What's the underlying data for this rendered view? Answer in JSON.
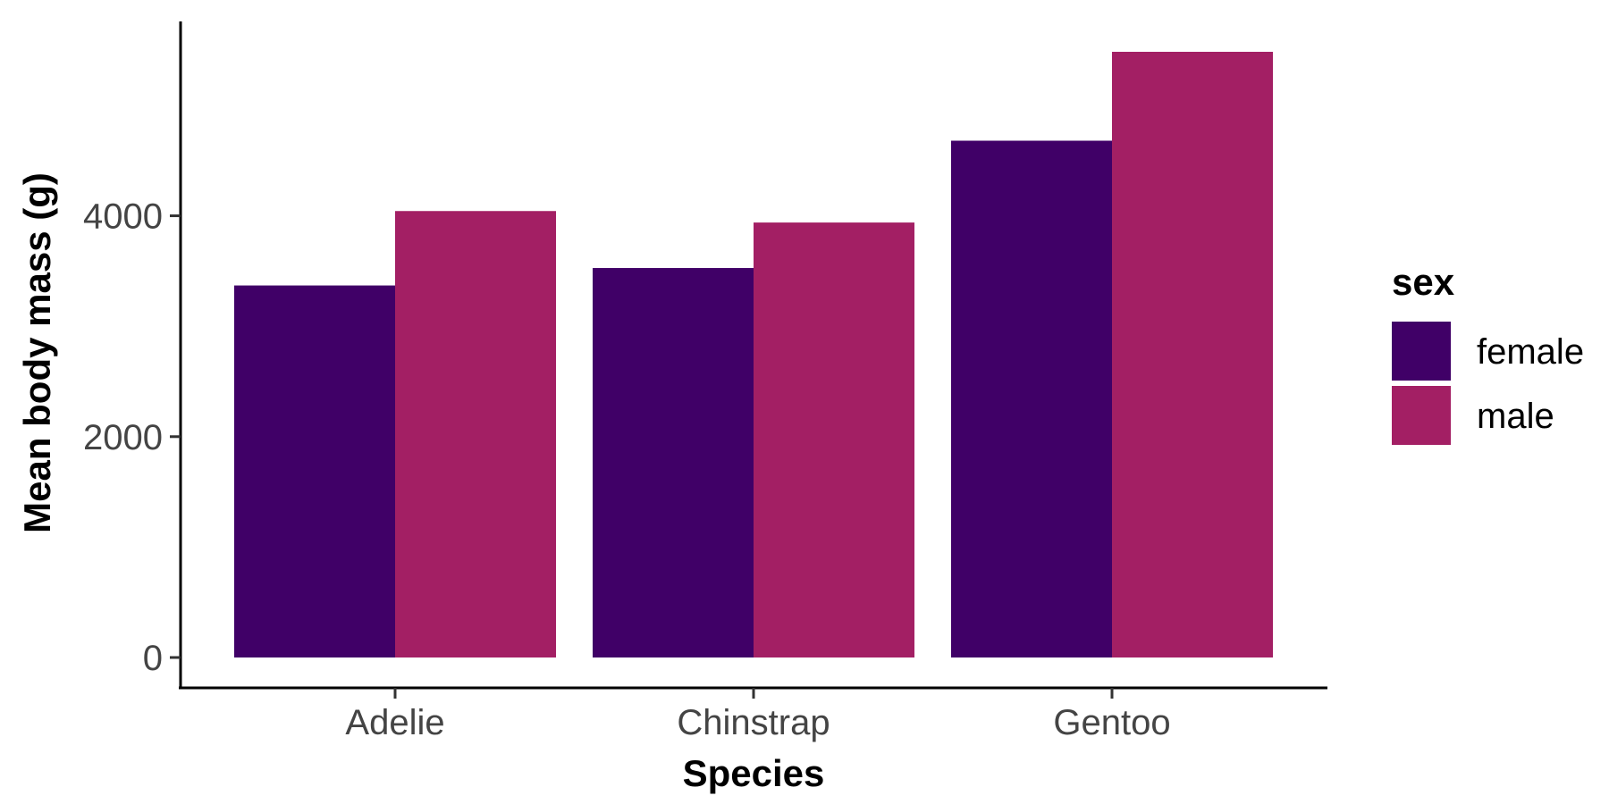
{
  "chart_data": {
    "type": "bar",
    "categories": [
      "Adelie",
      "Chinstrap",
      "Gentoo"
    ],
    "series": [
      {
        "name": "female",
        "values": [
          3369,
          3527,
          4680
        ],
        "color": "#400067"
      },
      {
        "name": "male",
        "values": [
          4043,
          3939,
          5485
        ],
        "color": "#a31f64"
      }
    ],
    "xlabel": "Species",
    "ylabel": "Mean body mass (g)",
    "ylim": [
      0,
      5760
    ],
    "yticks": [
      0,
      2000,
      4000
    ],
    "grid": false,
    "legend": {
      "title": "sex",
      "position": "right"
    }
  }
}
